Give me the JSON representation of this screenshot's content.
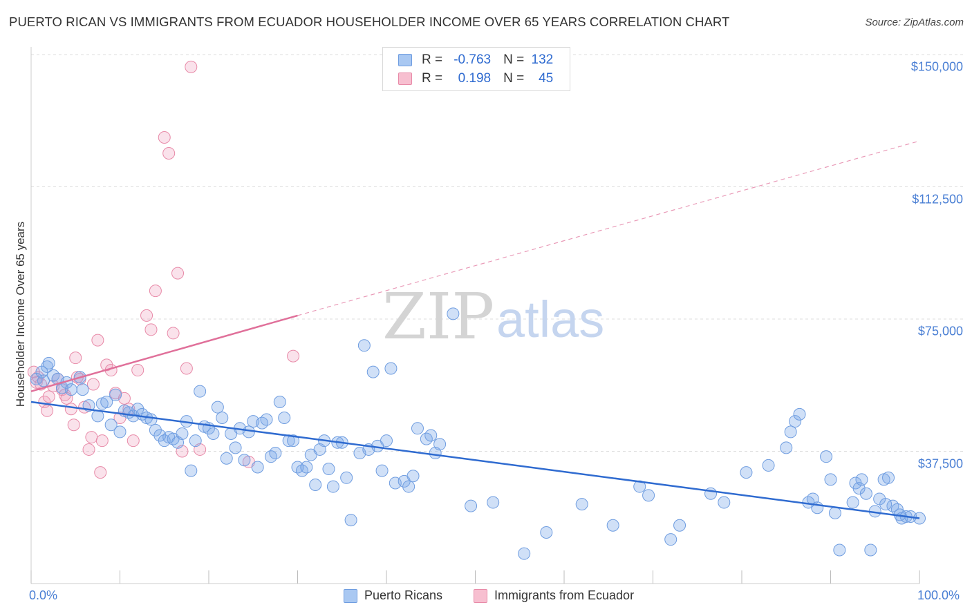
{
  "title": "PUERTO RICAN VS IMMIGRANTS FROM ECUADOR HOUSEHOLDER INCOME OVER 65 YEARS CORRELATION CHART",
  "source": "Source: ZipAtlas.com",
  "watermark": {
    "zip": "ZIP",
    "atlas": "atlas"
  },
  "legend": {
    "rows": [
      {
        "r_label": "R =",
        "r_value": "-0.763",
        "n_label": "N =",
        "n_value": "132",
        "fill": "#a9c8f2",
        "stroke": "#6f9de0"
      },
      {
        "r_label": "R =",
        "r_value": "0.198",
        "n_label": "N =",
        "n_value": "45",
        "fill": "#f7bfd0",
        "stroke": "#e88aa8"
      }
    ]
  },
  "bottom_legend": [
    {
      "label": "Puerto Ricans",
      "fill": "#a9c8f2",
      "stroke": "#6f9de0"
    },
    {
      "label": "Immigrants from Ecuador",
      "fill": "#f7bfd0",
      "stroke": "#e88aa8"
    }
  ],
  "colors": {
    "blue_point_fill": "rgba(120,165,232,0.35)",
    "blue_point_stroke": "#6f9de0",
    "pink_point_fill": "rgba(240,160,190,0.30)",
    "pink_point_stroke": "#e88aa8",
    "blue_line": "#2f6bd0",
    "pink_line": "#e0709a",
    "grid": "#dddddd",
    "tick_label": "#4a7fd4"
  },
  "chart_data": {
    "type": "scatter",
    "title": "PUERTO RICAN VS IMMIGRANTS FROM ECUADOR HOUSEHOLDER INCOME OVER 65 YEARS CORRELATION CHART",
    "xlabel": "",
    "ylabel": "Householder Income Over 65 years",
    "xlim": [
      0,
      100
    ],
    "ylim": [
      0,
      150000
    ],
    "x_tick_labels": [
      "0.0%",
      "100.0%"
    ],
    "y_ticks": [
      37500,
      75000,
      112500,
      150000
    ],
    "y_tick_labels": [
      "$37,500",
      "$75,000",
      "$112,500",
      "$150,000"
    ],
    "grid": true,
    "legend_position": "top-center",
    "series": [
      {
        "name": "Puerto Ricans",
        "r": -0.763,
        "n": 132,
        "trend": {
          "x": [
            0,
            100
          ],
          "y": [
            51500,
            18500
          ]
        },
        "points": [
          [
            0.6,
            58000
          ],
          [
            1.2,
            60000
          ],
          [
            1.4,
            57500
          ],
          [
            1.8,
            61500
          ],
          [
            2.0,
            62500
          ],
          [
            2.5,
            59000
          ],
          [
            3.0,
            58000
          ],
          [
            3.5,
            55500
          ],
          [
            4.0,
            57000
          ],
          [
            4.5,
            55000
          ],
          [
            5.5,
            58500
          ],
          [
            5.8,
            55000
          ],
          [
            6.5,
            50500
          ],
          [
            7.5,
            47500
          ],
          [
            8,
            51000
          ],
          [
            8.5,
            51500
          ],
          [
            9,
            45000
          ],
          [
            9.5,
            53500
          ],
          [
            10,
            43000
          ],
          [
            10.5,
            49000
          ],
          [
            11,
            48500
          ],
          [
            11.5,
            47500
          ],
          [
            12,
            49500
          ],
          [
            12.5,
            48000
          ],
          [
            13,
            47000
          ],
          [
            13.5,
            46500
          ],
          [
            14,
            43500
          ],
          [
            14.5,
            42000
          ],
          [
            15,
            40500
          ],
          [
            15.5,
            41500
          ],
          [
            16,
            41000
          ],
          [
            16.5,
            40000
          ],
          [
            17,
            42500
          ],
          [
            17.5,
            46000
          ],
          [
            18,
            32000
          ],
          [
            18.5,
            40500
          ],
          [
            19,
            54500
          ],
          [
            19.5,
            44500
          ],
          [
            20,
            44000
          ],
          [
            20.5,
            42500
          ],
          [
            21,
            50000
          ],
          [
            21.5,
            47000
          ],
          [
            22,
            35500
          ],
          [
            22.5,
            42500
          ],
          [
            23,
            38500
          ],
          [
            23.5,
            44000
          ],
          [
            24,
            35000
          ],
          [
            24.5,
            43000
          ],
          [
            25,
            46000
          ],
          [
            25.5,
            33000
          ],
          [
            26,
            45500
          ],
          [
            26.5,
            46500
          ],
          [
            27,
            36000
          ],
          [
            27.5,
            37000
          ],
          [
            28,
            51500
          ],
          [
            28.5,
            47000
          ],
          [
            29,
            40500
          ],
          [
            29.5,
            40500
          ],
          [
            30,
            33000
          ],
          [
            30.5,
            32000
          ],
          [
            31,
            33000
          ],
          [
            31.5,
            36500
          ],
          [
            32,
            28000
          ],
          [
            32.5,
            38000
          ],
          [
            33,
            40500
          ],
          [
            33.5,
            32500
          ],
          [
            34,
            27500
          ],
          [
            34.5,
            40000
          ],
          [
            35,
            40000
          ],
          [
            35.5,
            30000
          ],
          [
            36,
            18000
          ],
          [
            37,
            37000
          ],
          [
            37.5,
            67500
          ],
          [
            38,
            38000
          ],
          [
            38.5,
            60000
          ],
          [
            39,
            39000
          ],
          [
            39.5,
            32000
          ],
          [
            40,
            40500
          ],
          [
            40.5,
            61000
          ],
          [
            41,
            28500
          ],
          [
            42,
            29000
          ],
          [
            42.5,
            27500
          ],
          [
            43,
            30500
          ],
          [
            43.5,
            44000
          ],
          [
            44.5,
            41000
          ],
          [
            45,
            42000
          ],
          [
            45.5,
            37000
          ],
          [
            46,
            39500
          ],
          [
            47.5,
            76500
          ],
          [
            49.5,
            22000
          ],
          [
            52,
            23000
          ],
          [
            55.5,
            8500
          ],
          [
            58,
            14500
          ],
          [
            62,
            22500
          ],
          [
            65.5,
            16500
          ],
          [
            68.5,
            27500
          ],
          [
            69.5,
            25000
          ],
          [
            72,
            12500
          ],
          [
            73,
            16500
          ],
          [
            76.5,
            25500
          ],
          [
            78,
            23000
          ],
          [
            80.5,
            31500
          ],
          [
            83,
            33500
          ],
          [
            85,
            38500
          ],
          [
            85.5,
            43000
          ],
          [
            86,
            46000
          ],
          [
            86.5,
            48000
          ],
          [
            87.5,
            23000
          ],
          [
            88,
            24000
          ],
          [
            88.5,
            21500
          ],
          [
            89.5,
            36000
          ],
          [
            90,
            29500
          ],
          [
            90.5,
            20000
          ],
          [
            91,
            9500
          ],
          [
            92.5,
            23000
          ],
          [
            92.8,
            28500
          ],
          [
            93.2,
            27000
          ],
          [
            93.5,
            29500
          ],
          [
            94,
            25500
          ],
          [
            94.5,
            9500
          ],
          [
            95,
            20500
          ],
          [
            95.5,
            24000
          ],
          [
            96,
            29500
          ],
          [
            96.5,
            30000
          ],
          [
            97,
            22000
          ],
          [
            97.5,
            21000
          ],
          [
            98,
            18500
          ],
          [
            98.5,
            19000
          ],
          [
            99,
            19000
          ],
          [
            100,
            18500
          ],
          [
            96.2,
            22500
          ],
          [
            97.8,
            19500
          ]
        ]
      },
      {
        "name": "Immigrants from Ecuador",
        "r": 0.198,
        "n": 45,
        "trend": {
          "x": [
            0,
            30
          ],
          "y": [
            54500,
            76000
          ]
        },
        "trend_extrapolated": {
          "x": [
            30,
            100
          ],
          "y": [
            76000,
            125500
          ]
        },
        "points": [
          [
            0.3,
            60000
          ],
          [
            0.6,
            57000
          ],
          [
            0.8,
            58500
          ],
          [
            1.1,
            56500
          ],
          [
            1.5,
            51500
          ],
          [
            1.8,
            49000
          ],
          [
            2.0,
            53000
          ],
          [
            2.5,
            56000
          ],
          [
            3.0,
            58000
          ],
          [
            3.5,
            55000
          ],
          [
            3.8,
            53500
          ],
          [
            4.0,
            52500
          ],
          [
            4.5,
            49500
          ],
          [
            4.8,
            45000
          ],
          [
            5.0,
            64000
          ],
          [
            5.5,
            58000
          ],
          [
            6,
            50000
          ],
          [
            6.5,
            38000
          ],
          [
            6.8,
            41500
          ],
          [
            7,
            56500
          ],
          [
            7.5,
            69000
          ],
          [
            7.8,
            31500
          ],
          [
            8,
            40500
          ],
          [
            8.5,
            62000
          ],
          [
            9,
            60500
          ],
          [
            9.5,
            54000
          ],
          [
            10,
            47000
          ],
          [
            10.5,
            52500
          ],
          [
            11,
            49500
          ],
          [
            11.5,
            40500
          ],
          [
            12,
            60500
          ],
          [
            13,
            76000
          ],
          [
            13.5,
            72000
          ],
          [
            14,
            83000
          ],
          [
            15,
            126500
          ],
          [
            15.5,
            122000
          ],
          [
            16,
            71000
          ],
          [
            16.5,
            88000
          ],
          [
            17,
            37500
          ],
          [
            17.5,
            61000
          ],
          [
            18,
            146500
          ],
          [
            19,
            38000
          ],
          [
            24.5,
            34500
          ],
          [
            29.5,
            64500
          ],
          [
            5.2,
            58500
          ]
        ]
      }
    ]
  }
}
